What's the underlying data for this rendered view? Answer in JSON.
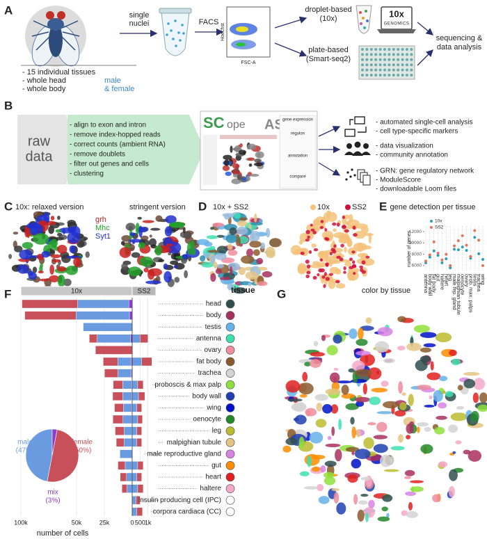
{
  "panel_letters": [
    "A",
    "B",
    "C",
    "D",
    "E",
    "F",
    "G"
  ],
  "panel_a": {
    "tissue_list": [
      "- 15 individual tissues",
      "- whole head",
      "- whole body"
    ],
    "sex": [
      "male",
      "& female"
    ],
    "sorting": [
      "single",
      "nuclei"
    ],
    "facs": "FACS",
    "facs_y": "Hoechst",
    "facs_x": "FSC-A",
    "droplet": [
      "droplet-based",
      "(10x)"
    ],
    "plate": [
      "plate-based",
      "(Smart-seq2)"
    ],
    "logo": [
      "10x",
      "GENOMICS"
    ],
    "output": [
      "sequencing &",
      "data analysis"
    ]
  },
  "panel_b": {
    "input": [
      "raw",
      "data"
    ],
    "steps": [
      "- align to exon and intron",
      "- remove index-hopped reads",
      "- correct counts (ambient RNA)",
      "- remove doublets",
      "- filter out genes and cells",
      "- clustering"
    ],
    "tool_names": [
      "SC",
      "ope",
      "ASAP"
    ],
    "tool_tabs": [
      "gene expression",
      "regulon",
      "annotation",
      "compare"
    ],
    "outputs": [
      [
        "- automated single-cell analysis",
        "- cell type-specific markers"
      ],
      [
        "- data visualization",
        "- community annotation"
      ],
      [
        "- GRN: gene regulatory network",
        "- ModuleScore",
        "- downloadable Loom files"
      ]
    ]
  },
  "panel_c": {
    "titles": [
      "10x:  relaxed version",
      "stringent version"
    ],
    "genes": [
      {
        "name": "grh",
        "color": "#c8201e"
      },
      {
        "name": "Mhc",
        "color": "#22a02a"
      },
      {
        "name": "Syt1",
        "color": "#2030d0"
      }
    ]
  },
  "panel_d": {
    "title": "10x + SS2",
    "legend": [
      {
        "name": "10x",
        "color": "#f5c27a"
      },
      {
        "name": "SS2",
        "color": "#d0103a"
      }
    ]
  },
  "panel_g": {
    "title": "color by tissue"
  },
  "chart_data": [
    {
      "type": "dot",
      "title": "gene detection per tissue",
      "y_label": "number of genes",
      "categories": [
        "antenna",
        "body wall",
        "fat body",
        "gut",
        "haltere",
        "heart",
        "leg",
        "male rep. gland",
        "malpighian tubule",
        "oenocyte",
        "ovary",
        "prob. max. palps",
        "testis",
        "trachea",
        "wing"
      ],
      "series": [
        {
          "name": "10x",
          "color": "#2aa0b8",
          "values": [
            6500,
            7500,
            8600,
            7800,
            6500,
            7200,
            5600,
            8900,
            8800,
            9300,
            8700,
            7300,
            11000,
            8100,
            7100
          ]
        },
        {
          "name": "SS2",
          "color": "#e5735a",
          "values": [
            6800,
            7900,
            10200,
            8200,
            7000,
            8000,
            6000,
            9500,
            10400,
            11300,
            9600,
            7600,
            12200,
            10500,
            6000
          ]
        }
      ],
      "ylim": [
        5000,
        13000
      ],
      "yticks": [
        6000,
        8000,
        10000,
        12000
      ],
      "grid": true
    },
    {
      "type": "split-bar",
      "header": "tissue",
      "x_label": "number of cells",
      "categories": [
        "head",
        "body",
        "testis",
        "antenna",
        "ovary",
        "fat body",
        "trachea",
        "proboscis & max palp",
        "body wall",
        "wing",
        "oenocyte",
        "leg",
        "malpighian tubule",
        "male reproductive gland",
        "gut",
        "heart",
        "haltere",
        "insulin producing cell (IPC)",
        "corpora cardiaca (CC)"
      ],
      "tissue_colors": [
        "#2f4f4f",
        "#a8305e",
        "#66b2e8",
        "#3ee0b0",
        "#f08c9c",
        "#8b5a2b",
        "#d4d4d4",
        "#8ee03a",
        "#1f3fb0",
        "#0010c8",
        "#22882a",
        "#bcbc30",
        "#e4c484",
        "#d884e4",
        "#ff8c00",
        "#e02020",
        "#f4a8c8",
        "#ffffff",
        "#ffffff"
      ],
      "groups": [
        {
          "name": "10x",
          "xlim": [
            100000,
            0
          ],
          "xticks": [
            {
              "value": 100000,
              "label": "100k"
            },
            {
              "value": 50000,
              "label": "50k"
            },
            {
              "value": 25000,
              "label": "25k"
            },
            0
          ],
          "series": [
            {
              "color": "#8a3fd0",
              "values": [
                3000,
                2500,
                0,
                1500,
                0,
                1000,
                800,
                500,
                500,
                400,
                300,
                300,
                300,
                0,
                300,
                200,
                200,
                0,
                0
              ]
            },
            {
              "color": "#6a9be0",
              "values": [
                46000,
                48000,
                44000,
                30000,
                0,
                12000,
                12000,
                8000,
                8000,
                7500,
                8000,
                7000,
                7000,
                11000,
                6000,
                5000,
                4500,
                0,
                0
              ]
            },
            {
              "color": "#c8505a",
              "values": [
                50000,
                46000,
                0,
                7000,
                33000,
                13000,
                12000,
                8500,
                9000,
                8000,
                9000,
                8000,
                7000,
                0,
                6500,
                5500,
                4500,
                0,
                0
              ]
            }
          ]
        },
        {
          "name": "SS2",
          "xlim": [
            0,
            1500
          ],
          "xticks": [
            500,
            {
              "value": 1000,
              "label": "1k"
            }
          ],
          "series": [
            {
              "color": "#6a9be0",
              "values": [
                0,
                0,
                0,
                500,
                0,
                600,
                0,
                350,
                400,
                300,
                350,
                300,
                300,
                0,
                350,
                300,
                350,
                250,
                300
              ]
            },
            {
              "color": "#c8505a",
              "values": [
                0,
                0,
                0,
                500,
                0,
                650,
                0,
                350,
                400,
                300,
                300,
                300,
                300,
                0,
                350,
                300,
                350,
                250,
                350
              ]
            }
          ]
        }
      ]
    },
    {
      "type": "pie",
      "categories": [
        "male",
        "female",
        "mix"
      ],
      "values": [
        47,
        50,
        3
      ],
      "value_labels": [
        "(47%)",
        "(50%)",
        "(3%)"
      ],
      "colors": [
        "#6a9be0",
        "#c8505a",
        "#8a3fd0"
      ]
    }
  ]
}
